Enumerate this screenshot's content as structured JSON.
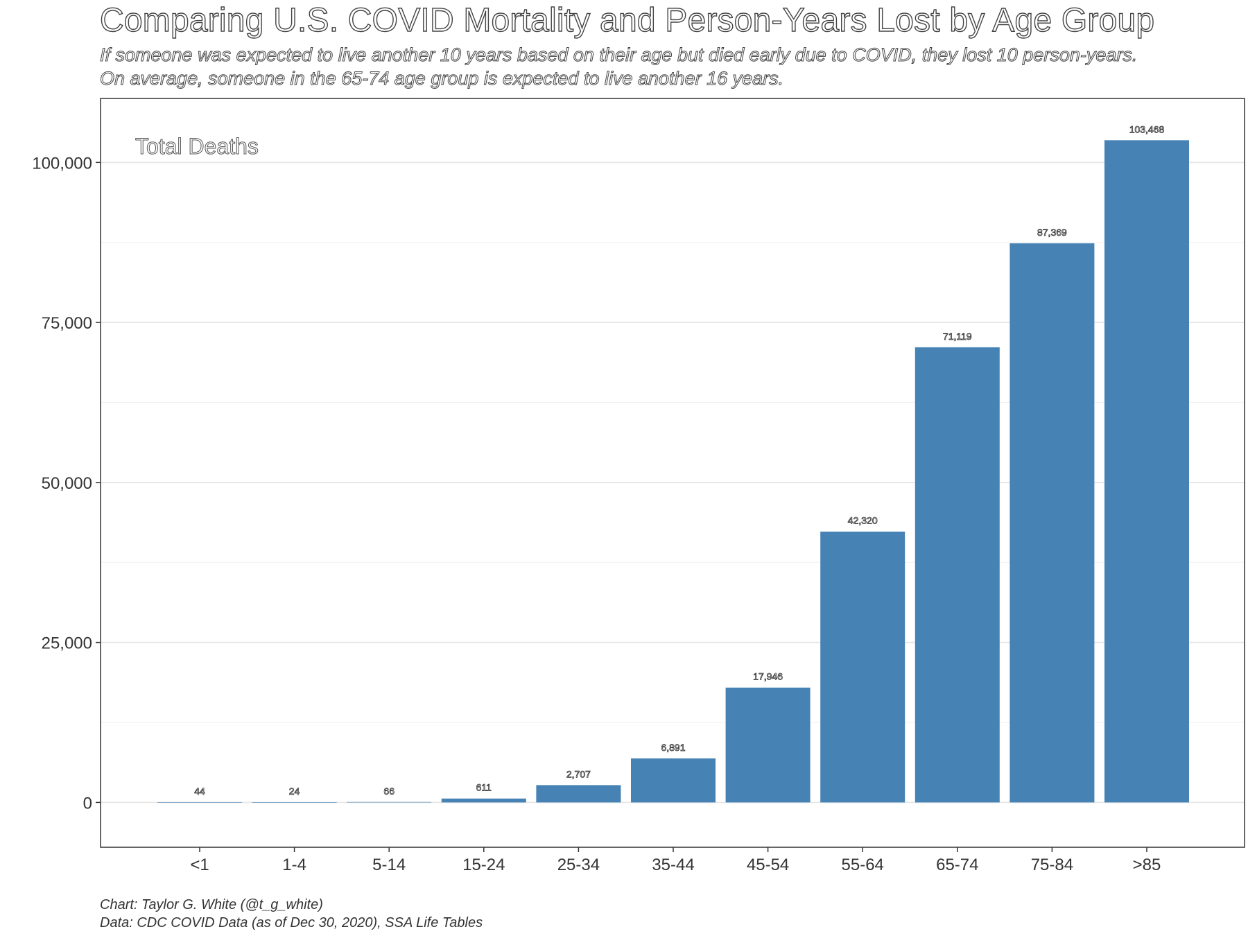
{
  "header": {
    "title": "Comparing U.S. COVID Mortality and Person-Years Lost by Age Group",
    "subtitle": "If someone was expected to live another 10 years based on their age but died early due to COVID, they lost 10 person-years. On average, someone in the 65-74 age group is expected to live another 16 years."
  },
  "footer": {
    "credit": "Chart: Taylor G. White (@t_g_white)",
    "source": "Data: CDC COVID Data (as of Dec 30, 2020), SSA Life Tables"
  },
  "colors": {
    "bar": "#4682b4",
    "grid": "#e6e6e6",
    "panel_border": "#333333"
  },
  "chart_data": {
    "type": "bar",
    "title": "Total Deaths",
    "xlabel": "",
    "ylabel": "",
    "categories": [
      "<1",
      "1-4",
      "5-14",
      "15-24",
      "25-34",
      "35-44",
      "45-54",
      "55-64",
      "65-74",
      "75-84",
      ">85"
    ],
    "values": [
      44,
      24,
      66,
      611,
      2707,
      6891,
      17946,
      42320,
      71119,
      87369,
      103468
    ],
    "data_labels": [
      "44",
      "24",
      "66",
      "611",
      "2,707",
      "6,891",
      "17,946",
      "42,320",
      "71,119",
      "87,369",
      "103,468"
    ],
    "ylim": [
      -7000,
      110000
    ],
    "yticks": [
      0,
      25000,
      50000,
      75000,
      100000
    ],
    "ytick_labels": [
      "0",
      "25,000",
      "50,000",
      "75,000",
      "100,000"
    ],
    "grid": true,
    "legend": "none"
  }
}
